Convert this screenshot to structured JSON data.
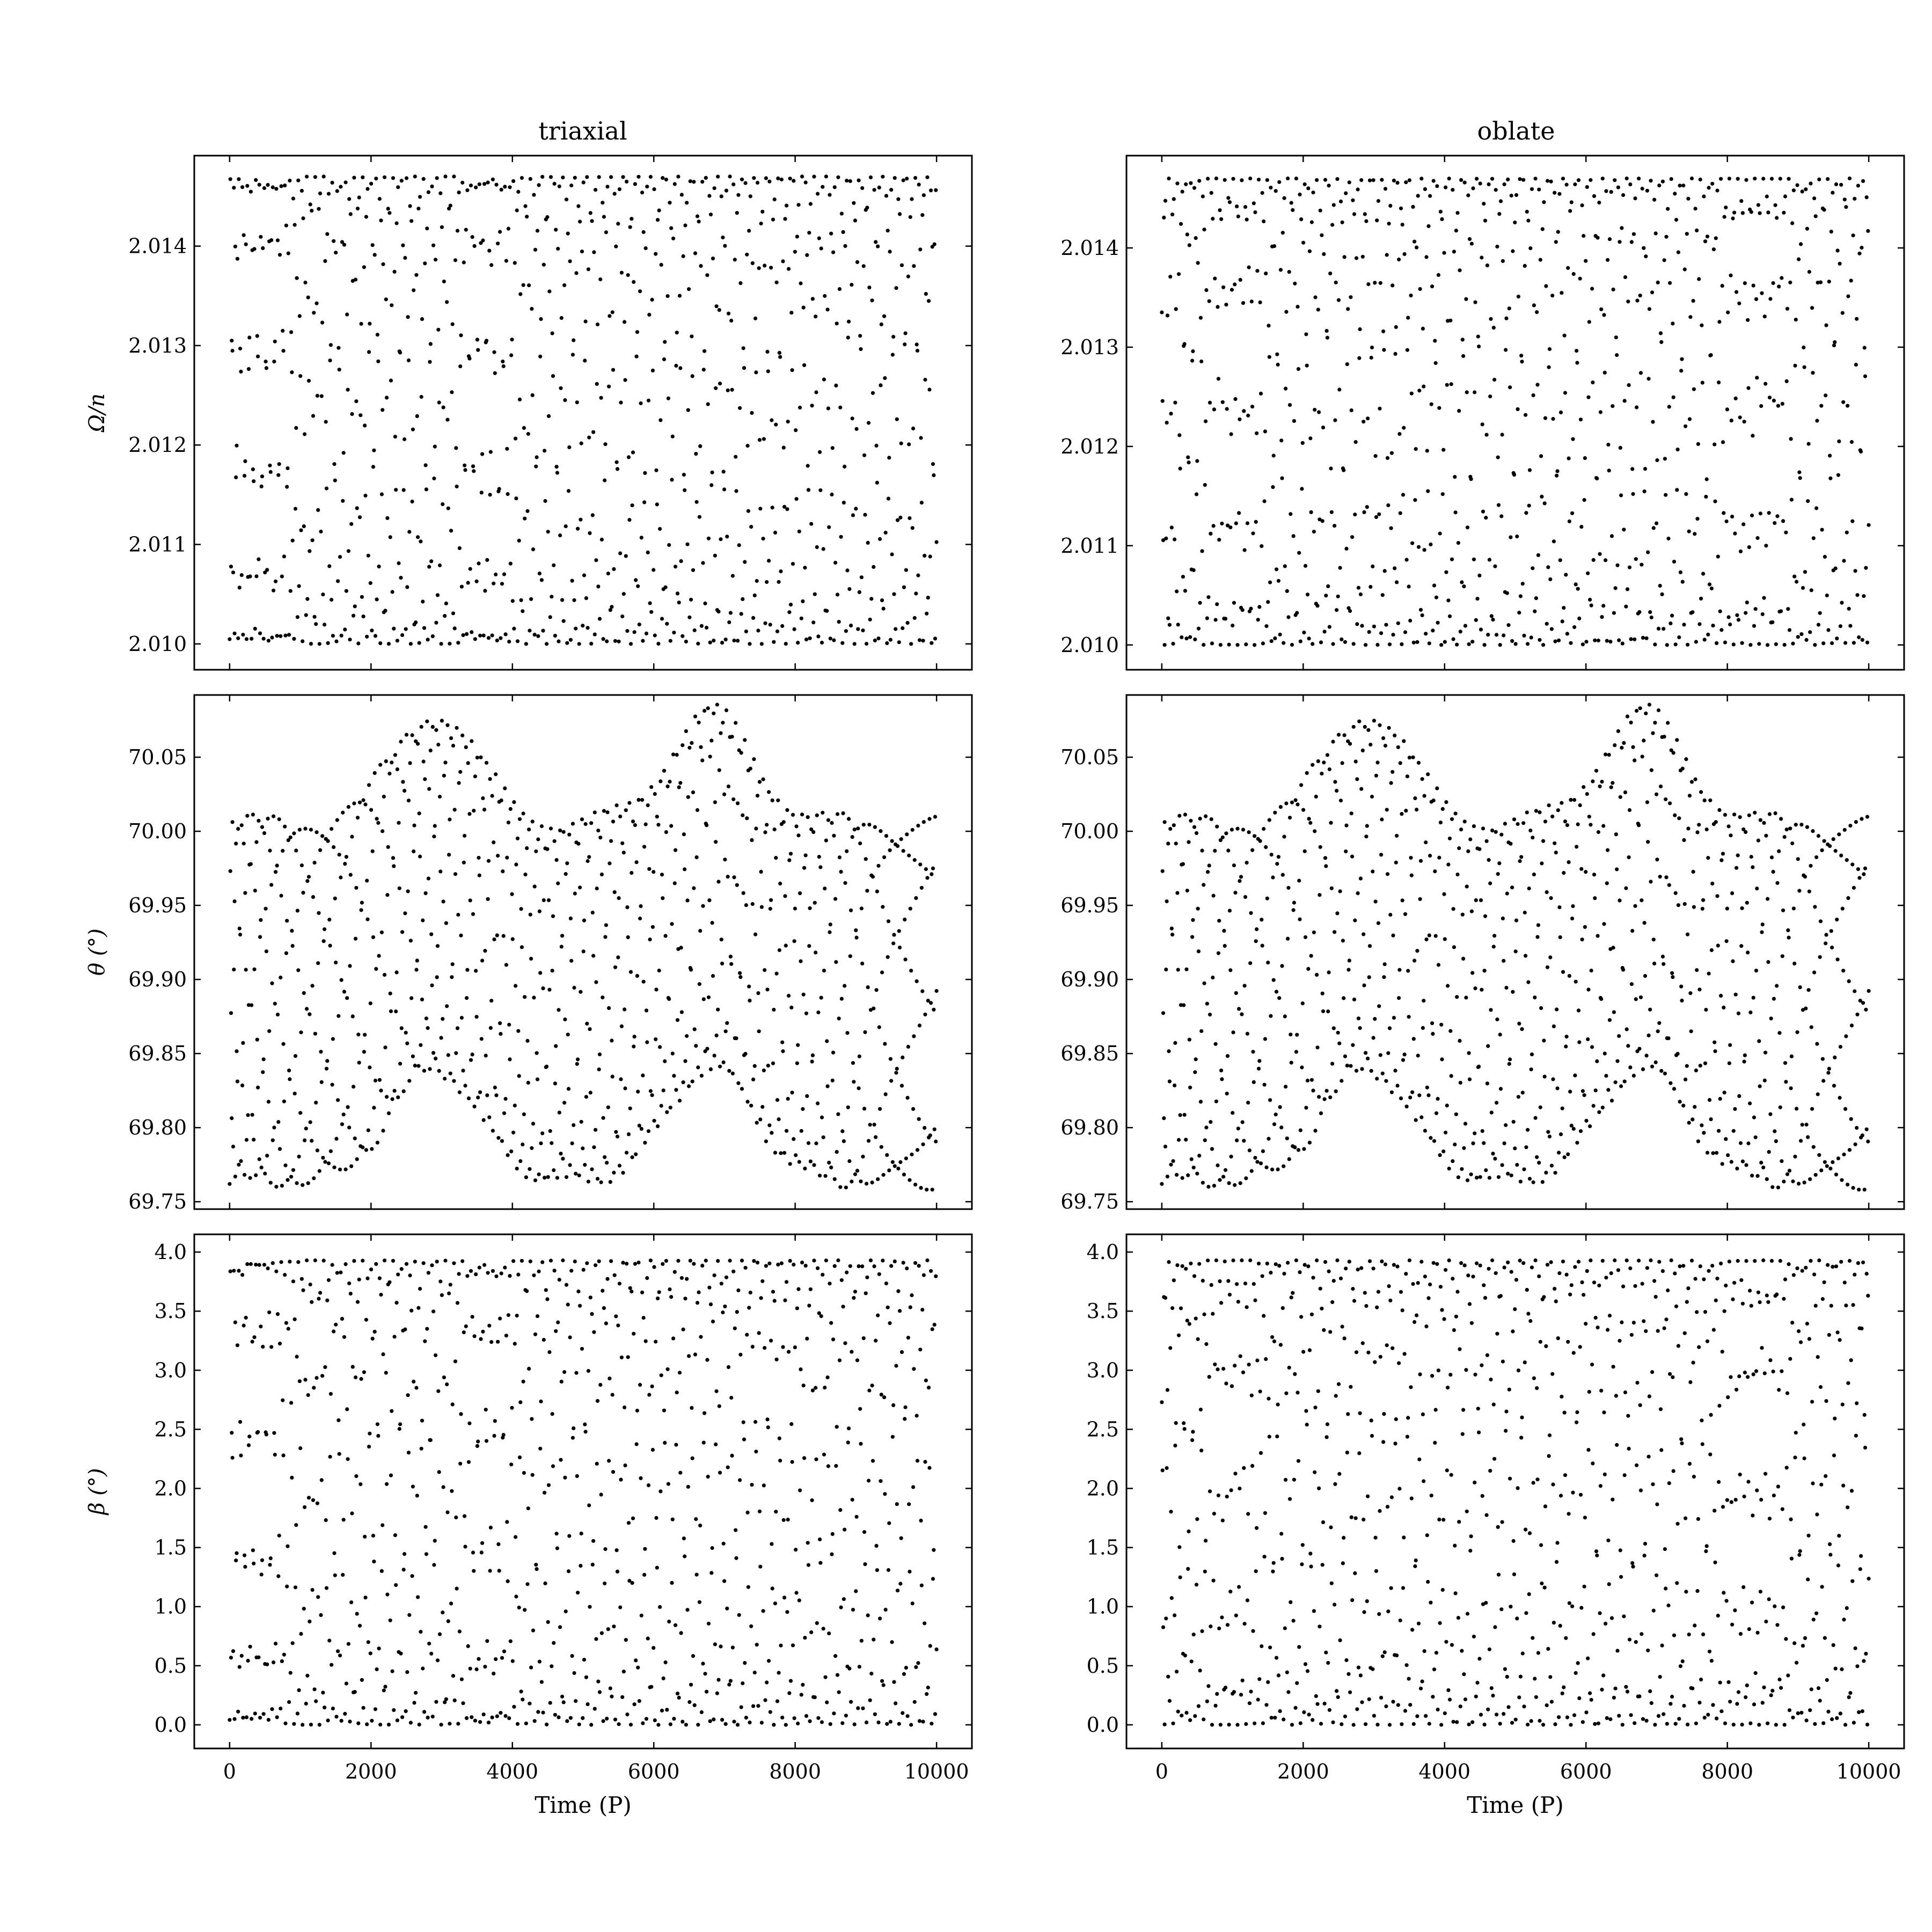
{
  "figure": {
    "columns": [
      {
        "title": "triaxial"
      },
      {
        "title": "oblate"
      }
    ],
    "xlabel": "Time (P)"
  },
  "chart_data": [
    {
      "type": "scatter",
      "column": "triaxial",
      "row": "omega",
      "title": "triaxial",
      "xlabel": "",
      "ylabel": "Ω/n",
      "xlim": [
        -500,
        10500
      ],
      "ylim": [
        2.00974,
        2.01491
      ],
      "xticks": [
        0,
        2000,
        4000,
        6000,
        8000,
        10000
      ],
      "xtick_labels": [],
      "yticks": [
        2.01,
        2.011,
        2.012,
        2.013,
        2.014
      ],
      "ytick_labels": [
        "2.010",
        "2.011",
        "2.012",
        "2.013",
        "2.014"
      ],
      "series": [
        {
          "x_start": 0,
          "x_end": 10000,
          "n_points": 1000,
          "y_min": 2.01,
          "y_max": 2.0147,
          "pattern": "triaxial_lattice"
        }
      ]
    },
    {
      "type": "scatter",
      "column": "triaxial",
      "row": "theta",
      "title": "",
      "xlabel": "",
      "ylabel": "θ (°)",
      "xlim": [
        -500,
        10500
      ],
      "ylim": [
        69.745,
        70.092
      ],
      "xticks": [
        0,
        2000,
        4000,
        6000,
        8000,
        10000
      ],
      "xtick_labels": [],
      "yticks": [
        69.75,
        69.8,
        69.85,
        69.9,
        69.95,
        70.0,
        70.05
      ],
      "ytick_labels": [
        "69.75",
        "69.80",
        "69.85",
        "69.90",
        "69.95",
        "70.00",
        "70.05"
      ],
      "series": [
        {
          "x_start": 0,
          "x_end": 10000,
          "n_points": 1000,
          "y_min": 69.762,
          "y_max": 70.075,
          "peaks": [
            2900,
            6800
          ],
          "pattern": "envelope_oscillation"
        }
      ]
    },
    {
      "type": "scatter",
      "column": "triaxial",
      "row": "beta",
      "title": "",
      "xlabel": "Time (P)",
      "ylabel": "β (°)",
      "xlim": [
        -500,
        10500
      ],
      "ylim": [
        -0.2,
        4.15
      ],
      "xticks": [
        0,
        2000,
        4000,
        6000,
        8000,
        10000
      ],
      "xtick_labels": [
        "0",
        "2000",
        "4000",
        "6000",
        "8000",
        "10000"
      ],
      "yticks": [
        0.0,
        0.5,
        1.0,
        1.5,
        2.0,
        2.5,
        3.0,
        3.5,
        4.0
      ],
      "ytick_labels": [
        "0.0",
        "0.5",
        "1.0",
        "1.5",
        "2.0",
        "2.5",
        "3.0",
        "3.5",
        "4.0"
      ],
      "series": [
        {
          "x_start": 0,
          "x_end": 10000,
          "n_points": 1000,
          "y_min": 0.0,
          "y_max": 3.93,
          "pattern": "triaxial_lattice"
        }
      ]
    },
    {
      "type": "scatter",
      "column": "oblate",
      "row": "omega",
      "title": "oblate",
      "xlabel": "",
      "ylabel": "",
      "xlim": [
        -500,
        10500
      ],
      "ylim": [
        2.00975,
        2.01493
      ],
      "xticks": [
        0,
        2000,
        4000,
        6000,
        8000,
        10000
      ],
      "xtick_labels": [],
      "yticks": [
        2.01,
        2.011,
        2.012,
        2.013,
        2.014
      ],
      "ytick_labels": [
        "2.010",
        "2.011",
        "2.012",
        "2.013",
        "2.014"
      ],
      "series": [
        {
          "x_start": 0,
          "x_end": 10000,
          "n_points": 1000,
          "y_min": 2.01,
          "y_max": 2.0147,
          "pattern": "oblate_diamond"
        }
      ]
    },
    {
      "type": "scatter",
      "column": "oblate",
      "row": "theta",
      "title": "",
      "xlabel": "",
      "ylabel": "",
      "xlim": [
        -500,
        10500
      ],
      "ylim": [
        69.745,
        70.092
      ],
      "xticks": [
        0,
        2000,
        4000,
        6000,
        8000,
        10000
      ],
      "xtick_labels": [],
      "yticks": [
        69.75,
        69.8,
        69.85,
        69.9,
        69.95,
        70.0,
        70.05
      ],
      "ytick_labels": [
        "69.75",
        "69.80",
        "69.85",
        "69.90",
        "69.95",
        "70.00",
        "70.05"
      ],
      "series": [
        {
          "x_start": 0,
          "x_end": 10000,
          "n_points": 1000,
          "y_min": 69.762,
          "y_max": 70.075,
          "peaks": [
            2900,
            6800
          ],
          "pattern": "envelope_oscillation"
        }
      ]
    },
    {
      "type": "scatter",
      "column": "oblate",
      "row": "beta",
      "title": "",
      "xlabel": "Time (P)",
      "ylabel": "",
      "xlim": [
        -500,
        10500
      ],
      "ylim": [
        -0.2,
        4.15
      ],
      "xticks": [
        0,
        2000,
        4000,
        6000,
        8000,
        10000
      ],
      "xtick_labels": [
        "0",
        "2000",
        "4000",
        "6000",
        "8000",
        "10000"
      ],
      "yticks": [
        0.0,
        0.5,
        1.0,
        1.5,
        2.0,
        2.5,
        3.0,
        3.5,
        4.0
      ],
      "ytick_labels": [
        "0.0",
        "0.5",
        "1.0",
        "1.5",
        "2.0",
        "2.5",
        "3.0",
        "3.5",
        "4.0"
      ],
      "series": [
        {
          "x_start": 0,
          "x_end": 10000,
          "n_points": 1000,
          "y_min": 0.0,
          "y_max": 3.93,
          "pattern": "oblate_diamond"
        }
      ]
    }
  ]
}
